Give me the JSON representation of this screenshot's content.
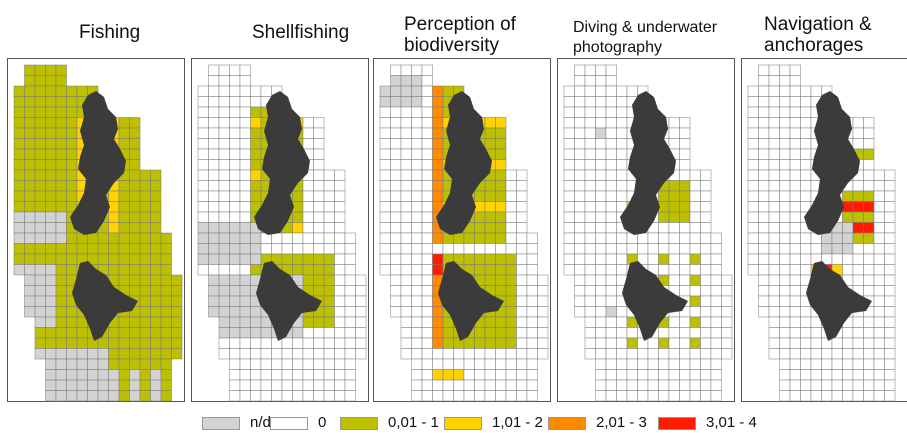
{
  "panels": [
    {
      "title_line1": "Fishing",
      "title_line2": ""
    },
    {
      "title_line1": "Shellfishing",
      "title_line2": ""
    },
    {
      "title_line1": "Perception of",
      "title_line2": "biodiversity"
    },
    {
      "title_line1": "Diving & underwater",
      "title_line2": "photography"
    },
    {
      "title_line1": "Navigation &",
      "title_line2": "anchorages"
    }
  ],
  "legend": {
    "items": [
      {
        "label": "n/d",
        "color": "#d3d3d3"
      },
      {
        "label": "0",
        "color": "#ffffff"
      },
      {
        "label": "0,01 - 1",
        "color": "#bcc000"
      },
      {
        "label": "1,01 - 2",
        "color": "#ffd200"
      },
      {
        "label": "2,01 - 3",
        "color": "#ff8a00"
      },
      {
        "label": "3,01 - 4",
        "color": "#ff1a00"
      }
    ]
  },
  "colors": {
    "island": "#3b3b3b",
    "grid_line": "#7a7a7a",
    "frame": "#555555"
  }
}
